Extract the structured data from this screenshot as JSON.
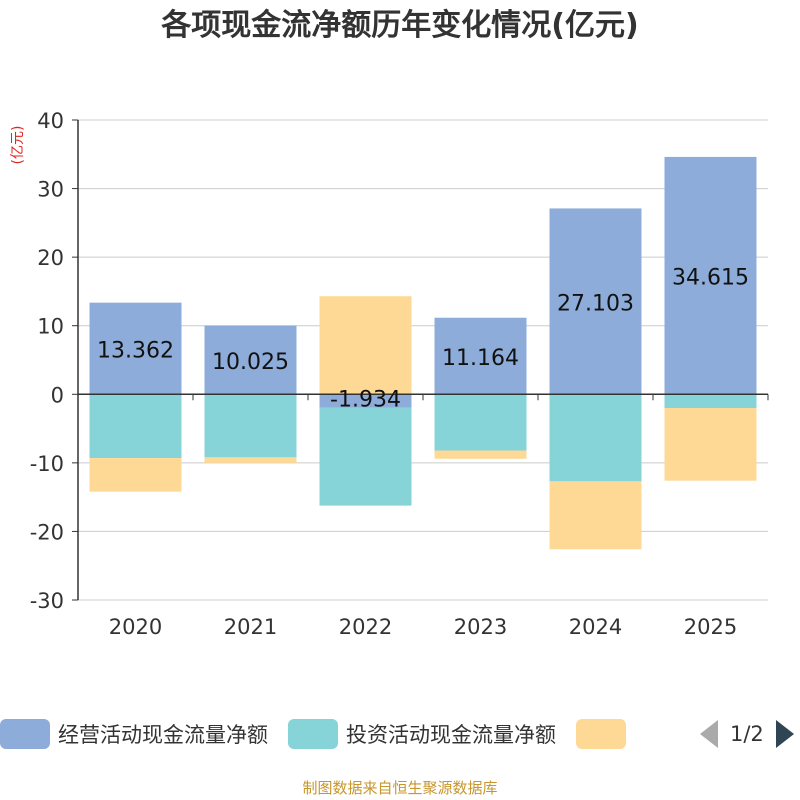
{
  "title": "各项现金流净额历年变化情况(亿元)",
  "footer": "制图数据来自恒生聚源数据库",
  "pager": {
    "text": "1/2"
  },
  "chart_data": {
    "type": "bar",
    "stacked": true,
    "title": "各项现金流净额历年变化情况(亿元)",
    "ylabel": "(亿元)",
    "xlabel": "",
    "ylim": [
      -30,
      40
    ],
    "yticks": [
      40,
      30,
      20,
      10,
      0,
      -10,
      -20,
      -30
    ],
    "categories": [
      "2020",
      "2021",
      "2022",
      "2023",
      "2024",
      "2025"
    ],
    "grid": true,
    "series": [
      {
        "name": "经营活动现金流量净额",
        "color": "#8eacd9",
        "values": [
          13.362,
          10.025,
          -1.934,
          11.164,
          27.103,
          34.615
        ],
        "labels": [
          "13.362",
          "10.025",
          "-1.934",
          "11.164",
          "27.103",
          "34.615"
        ]
      },
      {
        "name": "投资活动现金流量净额",
        "color": "#86d4d8",
        "values": [
          -9.3,
          -9.2,
          -14.3,
          -8.2,
          -12.7,
          -2.0
        ]
      },
      {
        "name": "",
        "color": "#fed996",
        "values": [
          -4.9,
          -0.8,
          14.3,
          -1.2,
          -9.9,
          -10.6
        ]
      }
    ],
    "legend": [
      "经营活动现金流量净额",
      "投资活动现金流量净额",
      ""
    ]
  }
}
